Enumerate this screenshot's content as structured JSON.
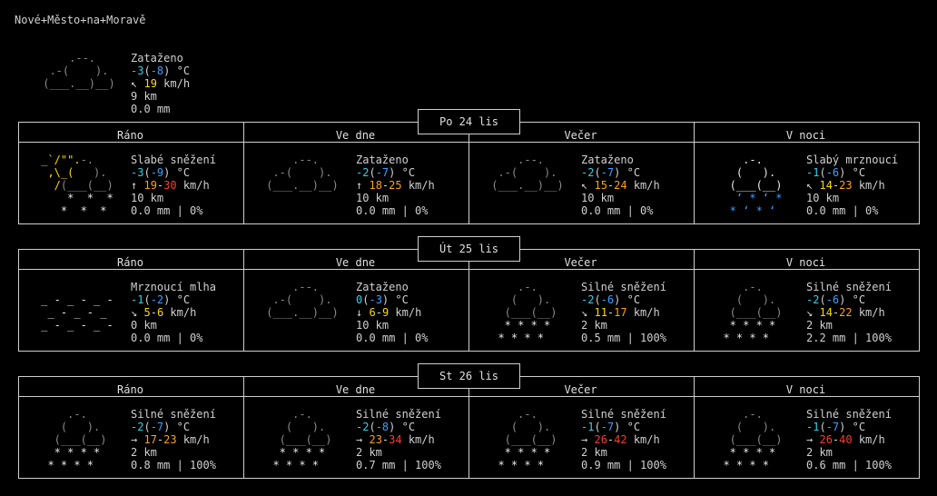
{
  "location": "Nové+Město+na+Moravě",
  "current": {
    "condition": "Zataženo",
    "temp": "-3",
    "feels": "-8",
    "unit": "°C",
    "wind_dir": "↖",
    "wind": "19",
    "wind_unit": "km/h",
    "visibility": "9 km",
    "precip": "0.0 mm"
  },
  "periods": [
    "Ráno",
    "Ve dne",
    "Večer",
    "V noci"
  ],
  "days": [
    {
      "label": "Po 24 lis",
      "slots": [
        {
          "condition": "Slabé sněžení",
          "temp": "-3",
          "feels": "-9",
          "wind_dir": "↑",
          "wind_lo": "19",
          "wind_hi": "30",
          "vis": "10 km",
          "precip": "0.0 mm | 0%"
        },
        {
          "condition": "Zataženo",
          "temp": "-2",
          "feels": "-7",
          "wind_dir": "↑",
          "wind_lo": "18",
          "wind_hi": "25",
          "vis": "10 km",
          "precip": "0.0 mm | 0%"
        },
        {
          "condition": "Zataženo",
          "temp": "-2",
          "feels": "-7",
          "wind_dir": "↖",
          "wind_lo": "15",
          "wind_hi": "24",
          "vis": "10 km",
          "precip": "0.0 mm | 0%"
        },
        {
          "condition": "Slabý mrznoucí",
          "temp": "-1",
          "feels": "-6",
          "wind_dir": "↖",
          "wind_lo": "14",
          "wind_hi": "23",
          "vis": "10 km",
          "precip": "0.0 mm | 0%"
        }
      ]
    },
    {
      "label": "Út 25 lis",
      "slots": [
        {
          "condition": "Mrznoucí mlha",
          "temp": "-1",
          "feels": "-2",
          "wind_dir": "↘",
          "wind_lo": "5",
          "wind_hi": "6",
          "vis": "0 km",
          "precip": "0.0 mm | 0%"
        },
        {
          "condition": "Zataženo",
          "temp": "0",
          "feels": "-3",
          "wind_dir": "↓",
          "wind_lo": "6",
          "wind_hi": "9",
          "vis": "10 km",
          "precip": "0.0 mm | 0%"
        },
        {
          "condition": "Silné sněžení",
          "temp": "-2",
          "feels": "-6",
          "wind_dir": "↘",
          "wind_lo": "11",
          "wind_hi": "17",
          "vis": "2 km",
          "precip": "0.5 mm | 100%"
        },
        {
          "condition": "Silné sněžení",
          "temp": "-2",
          "feels": "-6",
          "wind_dir": "↘",
          "wind_lo": "14",
          "wind_hi": "22",
          "vis": "2 km",
          "precip": "2.2 mm | 100%"
        }
      ]
    },
    {
      "label": "St 26 lis",
      "slots": [
        {
          "condition": "Silné sněžení",
          "temp": "-2",
          "feels": "-7",
          "wind_dir": "→",
          "wind_lo": "17",
          "wind_hi": "23",
          "vis": "2 km",
          "precip": "0.8 mm | 100%"
        },
        {
          "condition": "Silné sněžení",
          "temp": "-2",
          "feels": "-8",
          "wind_dir": "→",
          "wind_lo": "23",
          "wind_hi": "34",
          "vis": "2 km",
          "precip": "0.7 mm | 100%"
        },
        {
          "condition": "Silné sněžení",
          "temp": "-1",
          "feels": "-7",
          "wind_dir": "→",
          "wind_lo": "26",
          "wind_hi": "42",
          "vis": "2 km",
          "precip": "0.9 mm | 100%"
        },
        {
          "condition": "Silné sněžení",
          "temp": "-1",
          "feels": "-7",
          "wind_dir": "→",
          "wind_lo": "26",
          "wind_hi": "40",
          "vis": "2 km",
          "precip": "0.6 mm | 100%"
        }
      ]
    }
  ]
}
